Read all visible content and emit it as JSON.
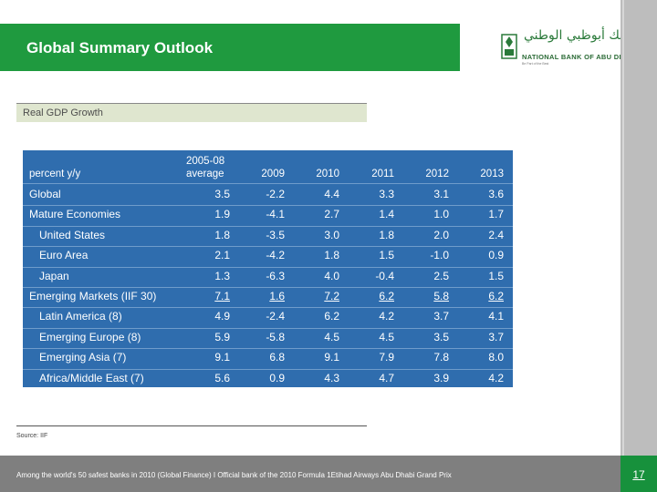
{
  "header": {
    "title": "Global Summary Outlook",
    "logo": {
      "arabic": "بنك أبوظبي الوطني",
      "english": "NATIONAL BANK OF ABU DHABI",
      "tagline": "Be Part of the Best"
    }
  },
  "section": {
    "label": "Real GDP Growth"
  },
  "table": {
    "header_label": "percent y/y",
    "columns": [
      "2005-08\naverage",
      "2009",
      "2010",
      "2011",
      "2012",
      "2013"
    ],
    "rows": [
      {
        "label": "Global",
        "indent": false,
        "underline": false,
        "values": [
          "3.5",
          "-2.2",
          "4.4",
          "3.3",
          "3.1",
          "3.6"
        ]
      },
      {
        "label": "Mature Economies",
        "indent": false,
        "underline": false,
        "values": [
          "1.9",
          "-4.1",
          "2.7",
          "1.4",
          "1.0",
          "1.7"
        ]
      },
      {
        "label": "United States",
        "indent": true,
        "underline": false,
        "values": [
          "1.8",
          "-3.5",
          "3.0",
          "1.8",
          "2.0",
          "2.4"
        ]
      },
      {
        "label": "Euro Area",
        "indent": true,
        "underline": false,
        "values": [
          "2.1",
          "-4.2",
          "1.8",
          "1.5",
          "-1.0",
          "0.9"
        ]
      },
      {
        "label": "Japan",
        "indent": true,
        "underline": false,
        "values": [
          "1.3",
          "-6.3",
          "4.0",
          "-0.4",
          "2.5",
          "1.5"
        ]
      },
      {
        "label": "Emerging Markets (IIF 30)",
        "indent": false,
        "underline": true,
        "values": [
          "7.1",
          "1.6",
          "7.2",
          "6.2",
          "5.8",
          "6.2"
        ]
      },
      {
        "label": "Latin America (8)",
        "indent": true,
        "underline": false,
        "values": [
          "4.9",
          "-2.4",
          "6.2",
          "4.2",
          "3.7",
          "4.1"
        ]
      },
      {
        "label": "Emerging Europe (8)",
        "indent": true,
        "underline": false,
        "values": [
          "5.9",
          "-5.8",
          "4.5",
          "4.5",
          "3.5",
          "3.7"
        ]
      },
      {
        "label": "Emerging Asia (7)",
        "indent": true,
        "underline": false,
        "values": [
          "9.1",
          "6.8",
          "9.1",
          "7.9",
          "7.8",
          "8.0"
        ]
      },
      {
        "label": "Africa/Middle East (7)",
        "indent": true,
        "underline": false,
        "values": [
          "5.6",
          "0.9",
          "4.3",
          "4.7",
          "3.9",
          "4.2"
        ]
      }
    ]
  },
  "source": "Source: IIF",
  "footer": {
    "text": "Among the world's 50 safest banks in 2010 (Global Finance) I Official bank of the 2010 Formula 1Etihad Airways Abu Dhabi Grand Prix",
    "page_number": "17"
  },
  "colors": {
    "header_green": "#1f9a3f",
    "table_blue": "#2f6dae",
    "footer_gray": "#7f7f7f",
    "page_green": "#17913c"
  }
}
